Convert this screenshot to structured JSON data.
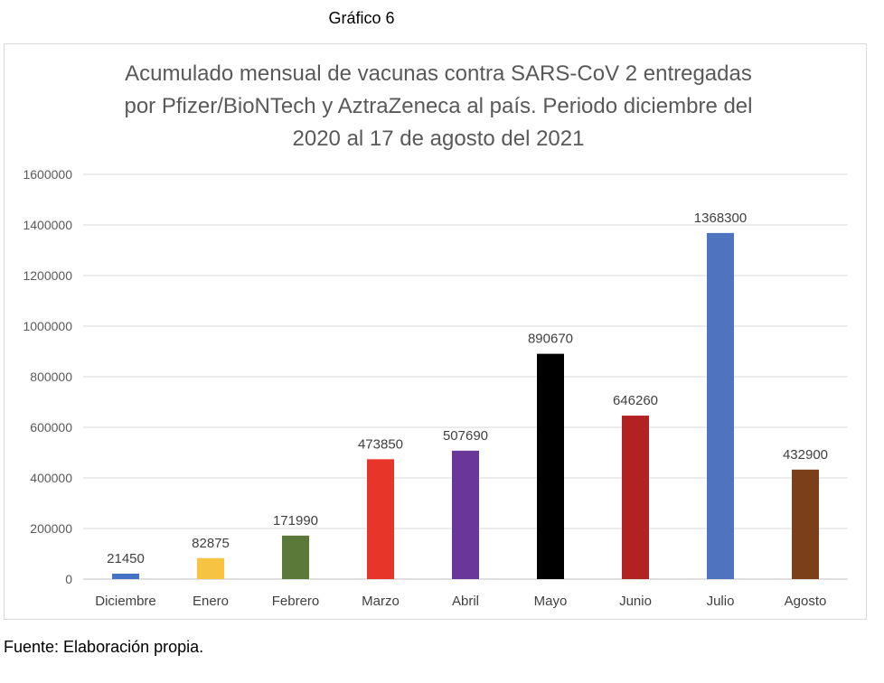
{
  "heading": "Gráfico 6",
  "source": "Fuente: Elaboración propia.",
  "chart_data": {
    "type": "bar",
    "title_lines": [
      "Acumulado mensual de vacunas contra SARS-CoV 2 entregadas",
      "por Pfizer/BioNTech y AztraZeneca al país. Periodo diciembre del",
      "2020 al 17 de agosto del 2021"
    ],
    "categories": [
      "Diciembre",
      "Enero",
      "Febrero",
      "Marzo",
      "Abril",
      "Mayo",
      "Junio",
      "Julio",
      "Agosto"
    ],
    "values": [
      21450,
      82875,
      171990,
      473850,
      507690,
      890670,
      646260,
      1368300,
      432900
    ],
    "data_labels": [
      "21450",
      "82875",
      "171990",
      "473850",
      "507690",
      "890670",
      "646260",
      "1368300",
      "432900"
    ],
    "colors": [
      "#4472c4",
      "#f6c342",
      "#5b7a3a",
      "#e8352a",
      "#6a3799",
      "#000000",
      "#b22222",
      "#4e74c0",
      "#7b3f1a"
    ],
    "ylim": [
      0,
      1600000
    ],
    "yticks": [
      0,
      200000,
      400000,
      600000,
      800000,
      1000000,
      1200000,
      1400000,
      1600000
    ],
    "ytick_labels": [
      "0",
      "200000",
      "400000",
      "600000",
      "800000",
      "1000000",
      "1200000",
      "1400000",
      "1600000"
    ],
    "grid": true,
    "legend": "none"
  }
}
